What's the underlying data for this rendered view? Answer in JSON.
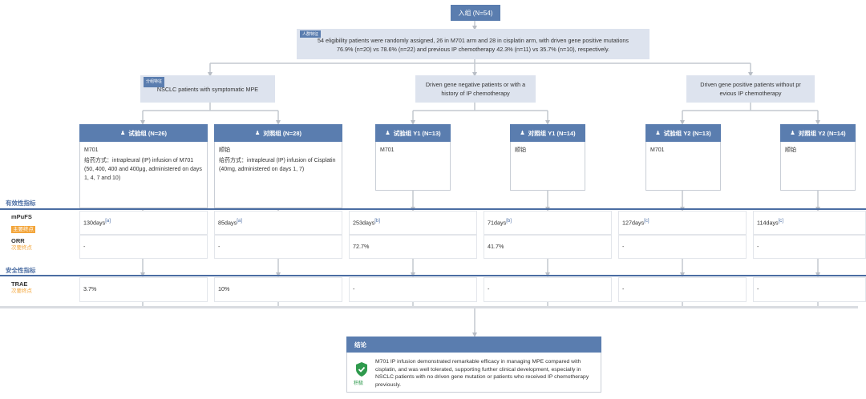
{
  "enrollment": {
    "label": "入组 (N=54)"
  },
  "eligibility": {
    "tag": "人群特征",
    "line1": "54 eligibility patients were randomly assigned, 26 in M701 arm and 28 in cisplatin arm, with driven gene positive mutations",
    "line2": "76.9% (n=20) vs 78.6% (n=22) and previous IP chemotherapy 42.3% (n=11) vs 35.7% (n=10), respectively."
  },
  "groups": [
    {
      "tag": "分组特征",
      "label": "NSCLC patients with symptomatic MPE"
    },
    {
      "label": "Driven gene negative patients or with a history of IP chemotherapy"
    },
    {
      "label": "Driven gene positive patients without pr evious IP chemotherapy"
    }
  ],
  "arms": [
    {
      "header": "试验组 (N=26)",
      "drug": "M701",
      "admin": "给药方式：intrapleural (IP) infusion of M701 (50, 400, 400 and 400μg, administered on days 1, 4, 7 and 10)"
    },
    {
      "header": "对照组 (N=28)",
      "drug": "顺铂",
      "admin": "给药方式：intrapleural (IP) infusion of Cisplatin (40mg, administered on days 1, 7)"
    },
    {
      "header": "试验组 Y1 (N=13)",
      "drug": "M701",
      "admin": ""
    },
    {
      "header": "对照组 Y1 (N=14)",
      "drug": "顺铂",
      "admin": ""
    },
    {
      "header": "试验组 Y2 (N=13)",
      "drug": "M701",
      "admin": ""
    },
    {
      "header": "对照组 Y2 (N=14)",
      "drug": "顺铂",
      "admin": ""
    }
  ],
  "sections": {
    "efficacy": "有效性指标",
    "safety": "安全性指标"
  },
  "rows": {
    "mpfs": {
      "title": "mPuFS",
      "badge": "主要终点",
      "values": [
        "130days",
        "85days",
        "253days",
        "71days",
        "127days",
        "114days"
      ],
      "refs": [
        "[a]",
        "[a]",
        "[b]",
        "[b]",
        "[c]",
        "[c]"
      ]
    },
    "orr": {
      "title": "ORR",
      "badge": "次要终点",
      "values": [
        "-",
        "-",
        "72.7%",
        "41.7%",
        "-",
        "-"
      ]
    },
    "trae": {
      "title": "TRAE",
      "badge": "次要终点",
      "values": [
        "3.7%",
        "10%",
        "-",
        "-",
        "-",
        "-"
      ]
    }
  },
  "conclusion": {
    "title": "结论",
    "icon_label": "积极",
    "text": "M701 IP infusion demonstrated remarkable efficacy in managing MPE compared with cisplatin, and was well tolerated, supporting further clinical development, especially in NSCLC patients with no driven gene mutation or patients who received IP chemotherapy previously."
  },
  "colors": {
    "primary": "#5a7daf",
    "light": "#dde3ee",
    "accent": "#f3a53a",
    "positive": "#2f9a4d"
  },
  "icons": {
    "arm": "person-icon",
    "conclusion": "shield-check-icon"
  }
}
